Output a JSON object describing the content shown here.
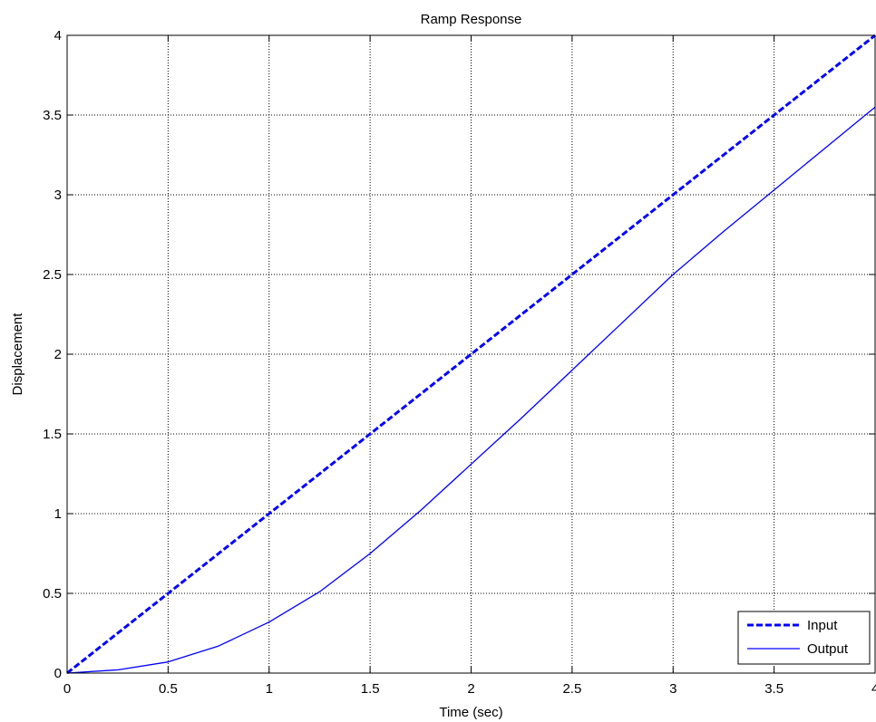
{
  "chart_data": {
    "type": "line",
    "title": "Ramp Response",
    "xlabel": "Time (sec)",
    "ylabel": "Displacement",
    "xlim": [
      0,
      4
    ],
    "ylim": [
      0,
      4
    ],
    "xticks": [
      "0",
      "0.5",
      "1",
      "1.5",
      "2",
      "2.5",
      "3",
      "3.5",
      "4"
    ],
    "yticks": [
      "0",
      "0.5",
      "1",
      "1.5",
      "2",
      "2.5",
      "3",
      "3.5",
      "4"
    ],
    "grid": true,
    "legend_position": "bottom-right",
    "series": [
      {
        "name": "Input",
        "style": "dashed",
        "color": "#0000ff",
        "x": [
          0,
          0.5,
          1,
          1.5,
          2,
          2.5,
          3,
          3.5,
          4
        ],
        "y": [
          0,
          0.5,
          1,
          1.5,
          2,
          2.5,
          3,
          3.5,
          4
        ]
      },
      {
        "name": "Output",
        "style": "solid",
        "color": "#0000ff",
        "x": [
          0,
          0.25,
          0.5,
          0.75,
          1,
          1.25,
          1.5,
          1.75,
          2,
          2.25,
          2.5,
          2.75,
          3,
          3.25,
          3.5,
          3.75,
          4
        ],
        "y": [
          0,
          0.02,
          0.07,
          0.17,
          0.32,
          0.51,
          0.75,
          1.02,
          1.31,
          1.6,
          1.9,
          2.2,
          2.5,
          2.77,
          3.03,
          3.29,
          3.55
        ]
      }
    ]
  }
}
